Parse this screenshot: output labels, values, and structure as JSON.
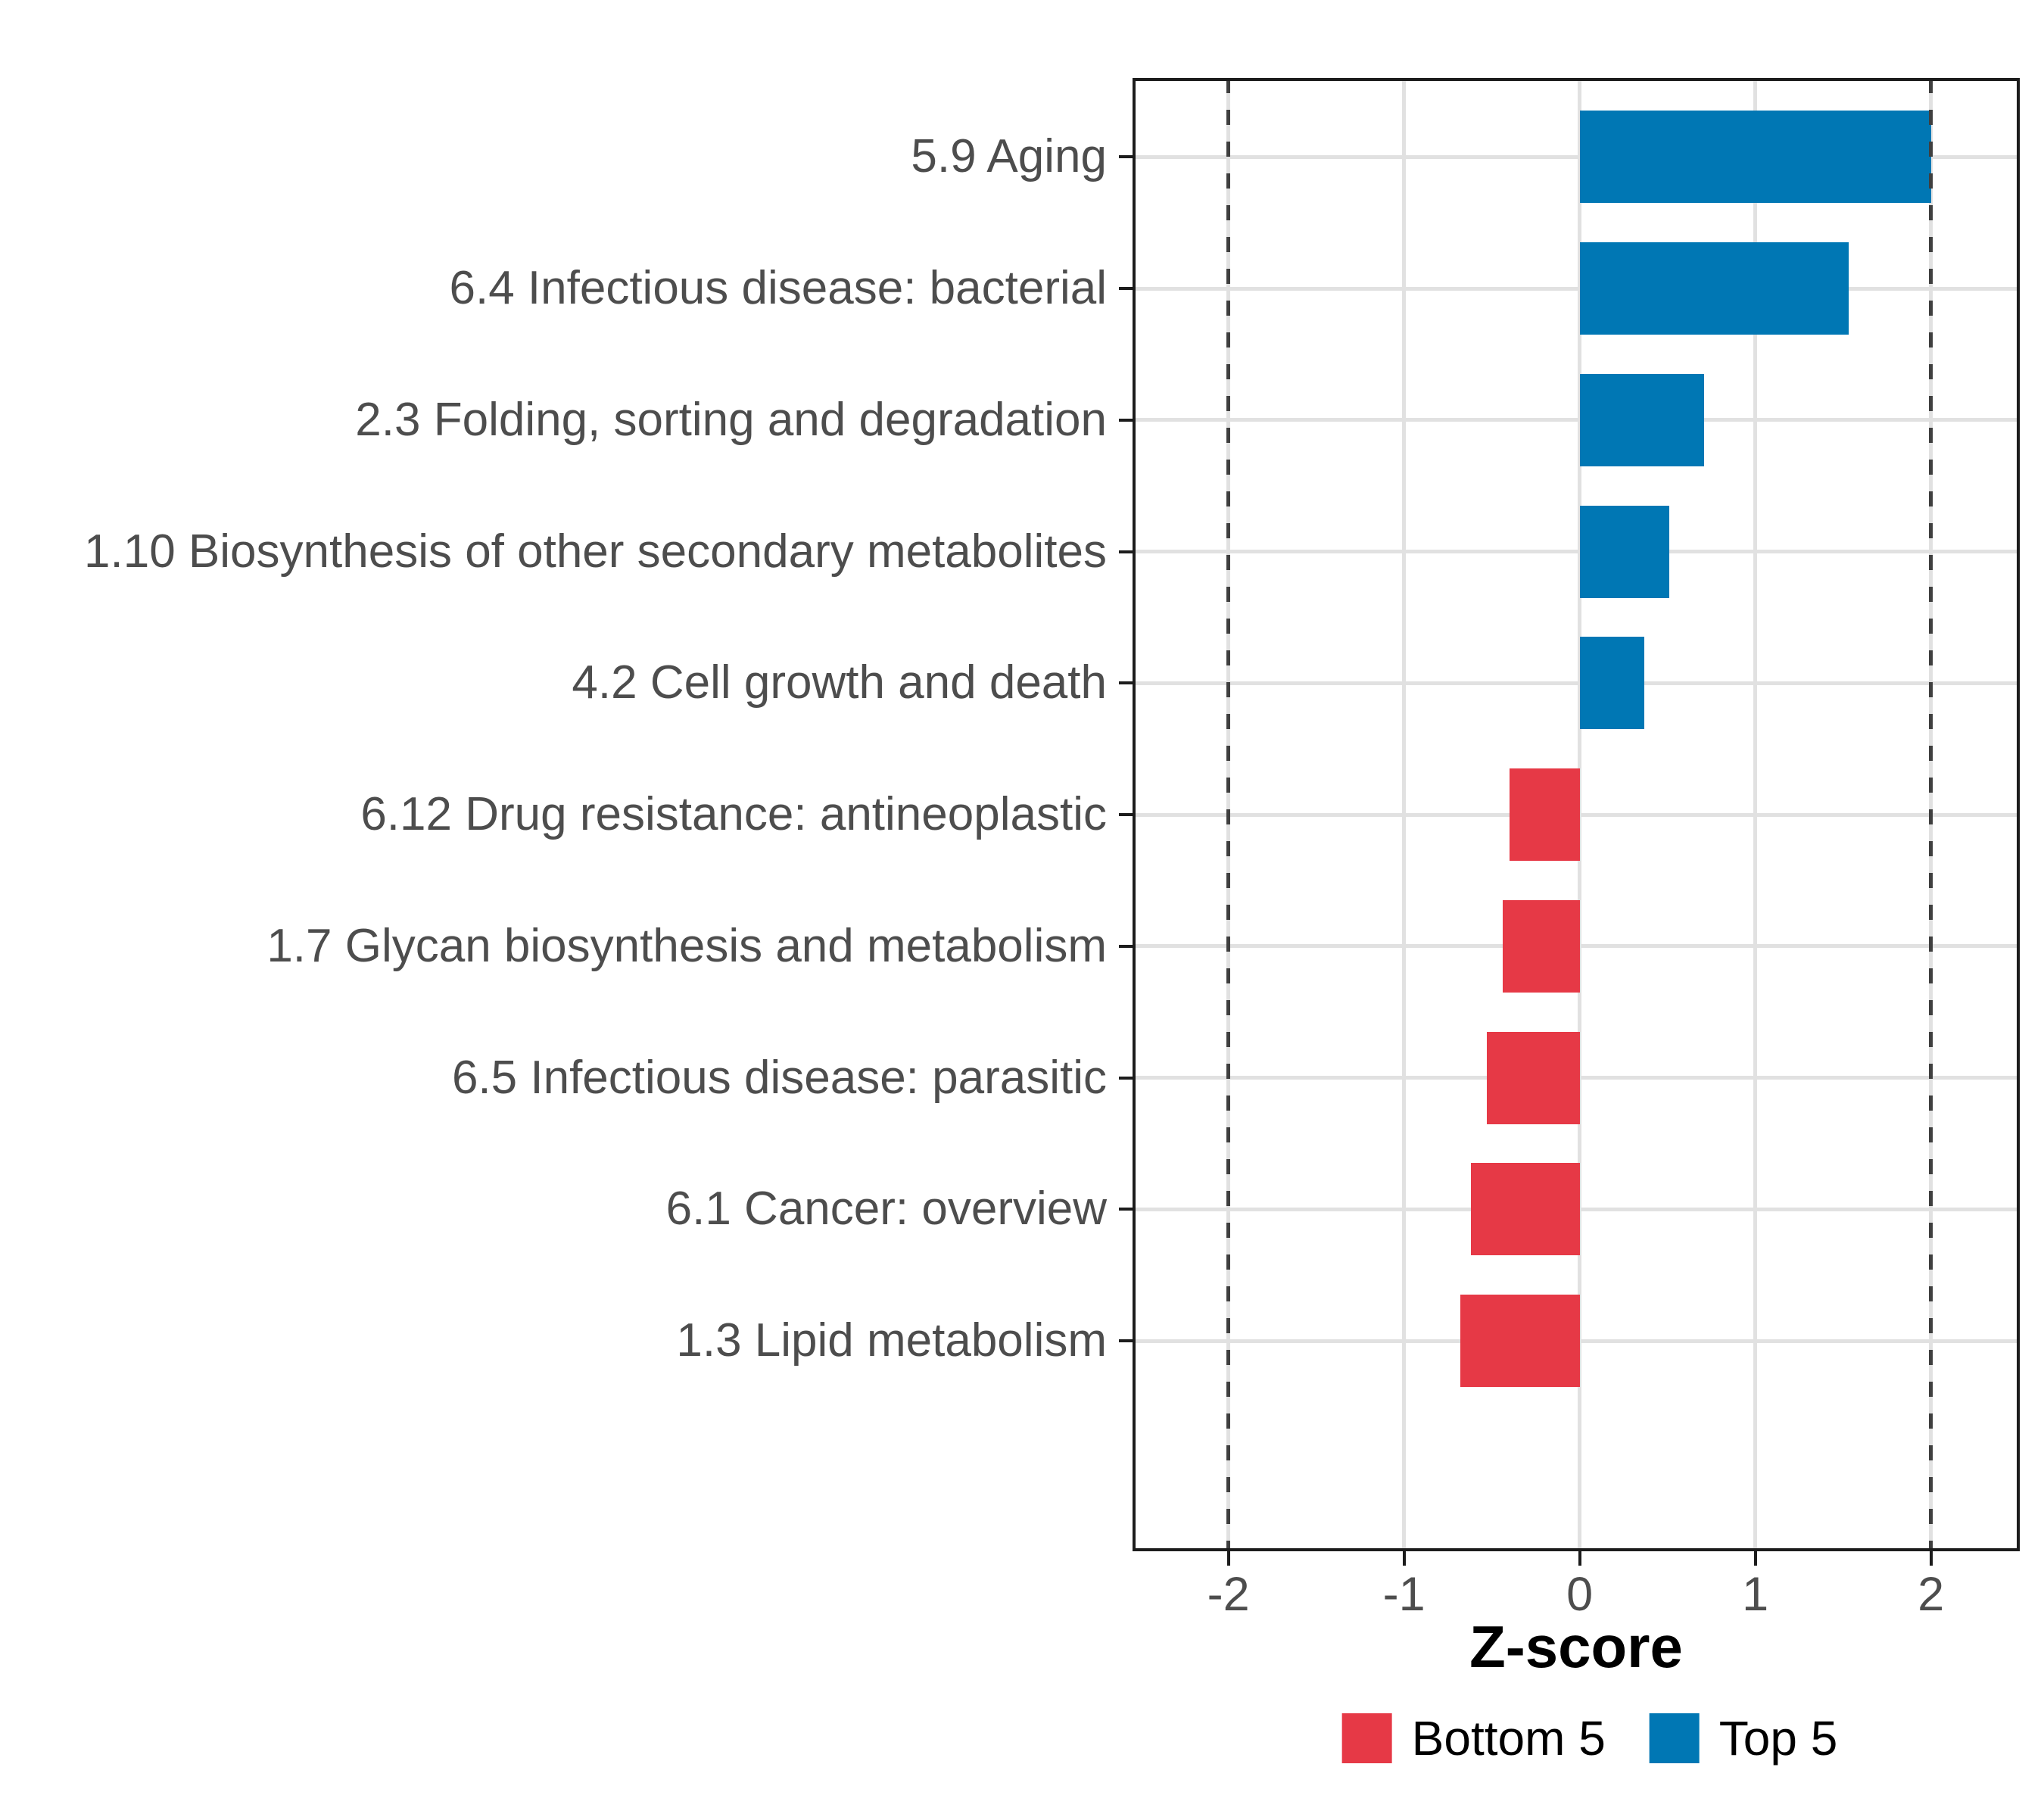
{
  "figure": {
    "xlabel": "Z-score",
    "legend": {
      "bottom5_label": "Bottom 5",
      "top5_label": "Top 5"
    }
  },
  "colors": {
    "top5_blue": "#0077b4",
    "bottom5_red": "#e63946",
    "gridline": "#e1e1e1",
    "reference_line": "#3f3f3f",
    "axis_text": "#4d4d4d",
    "panel_border": "#1c1c1c"
  },
  "chart_data": {
    "type": "bar",
    "orientation": "horizontal",
    "title": "",
    "xlabel": "Z-score",
    "ylabel": "",
    "grid": true,
    "legend_position": "bottom",
    "xlim": [
      -2.546,
      2.506
    ],
    "x_ticks": [
      -2,
      -1,
      0,
      1,
      2
    ],
    "x_tick_labels": [
      "-2",
      "-1",
      "0",
      "1",
      "2"
    ],
    "reference_lines": [
      -2,
      2
    ],
    "categories": [
      "5.9 Aging",
      "6.4 Infectious disease: bacterial",
      "2.3 Folding, sorting and degradation",
      "1.10 Biosynthesis of other secondary metabolites",
      "4.2 Cell growth and death",
      "6.12 Drug resistance: antineoplastic",
      "1.7 Glycan biosynthesis and metabolism",
      "6.5 Infectious disease: parasitic",
      "6.1 Cancer: overview",
      "1.3 Lipid metabolism"
    ],
    "values": [
      2.0,
      1.53,
      0.71,
      0.51,
      0.37,
      -0.4,
      -0.44,
      -0.53,
      -0.62,
      -0.68
    ],
    "groups": [
      "Top 5",
      "Top 5",
      "Top 5",
      "Top 5",
      "Top 5",
      "Bottom 5",
      "Bottom 5",
      "Bottom 5",
      "Bottom 5",
      "Bottom 5"
    ],
    "series": [
      {
        "name": "Top 5",
        "color": "#0077b4",
        "values": [
          2.0,
          1.53,
          0.71,
          0.51,
          0.37,
          null,
          null,
          null,
          null,
          null
        ]
      },
      {
        "name": "Bottom 5",
        "color": "#e63946",
        "values": [
          null,
          null,
          null,
          null,
          null,
          -0.4,
          -0.44,
          -0.53,
          -0.62,
          -0.68
        ]
      }
    ],
    "legend": [
      {
        "label": "Bottom 5",
        "color": "#e63946"
      },
      {
        "label": "Top 5",
        "color": "#0077b4"
      }
    ]
  }
}
